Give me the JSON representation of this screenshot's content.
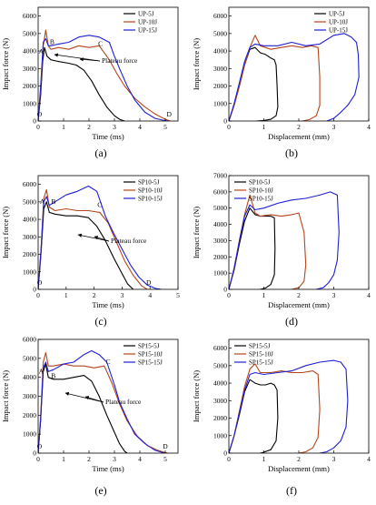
{
  "chart_data": [
    {
      "id": "a",
      "type": "line",
      "panel_label": "(a)",
      "xlabel": "Time (ms)",
      "ylabel": "Impact force (N)",
      "xlim": [
        0,
        5.5
      ],
      "ylim": [
        0,
        6500
      ],
      "xticks": [
        0,
        1,
        2,
        3,
        4,
        5
      ],
      "yticks": [
        0,
        1000,
        2000,
        3000,
        4000,
        5000,
        6000
      ],
      "legend": "top-right",
      "annotation": "Plateau force",
      "point_labels": [
        {
          "text": "O",
          "x": 0.05,
          "y": 250
        },
        {
          "text": "A",
          "x": 0.12,
          "y": 3850
        },
        {
          "text": "B",
          "x": 0.55,
          "y": 4400
        },
        {
          "text": "C",
          "x": 2.45,
          "y": 4300
        },
        {
          "text": "D",
          "x": 5.15,
          "y": 250
        }
      ],
      "series": [
        {
          "name": "UP-5J",
          "color": "#000000",
          "x": [
            0,
            0.1,
            0.18,
            0.25,
            0.35,
            0.5,
            0.8,
            1.2,
            1.5,
            1.8,
            2.1,
            2.4,
            2.7,
            3.0,
            3.2,
            3.4
          ],
          "y": [
            0,
            1500,
            3400,
            4200,
            3700,
            3500,
            3400,
            3300,
            3200,
            2900,
            2300,
            1500,
            800,
            300,
            100,
            0
          ]
        },
        {
          "name": "UP-10J",
          "color": "#b5451b",
          "x": [
            0,
            0.1,
            0.2,
            0.3,
            0.4,
            0.5,
            0.8,
            1.2,
            1.6,
            2.0,
            2.4,
            2.8,
            3.1,
            3.4,
            3.8,
            4.2,
            4.6,
            5.0,
            5.2
          ],
          "y": [
            0,
            1800,
            4300,
            5200,
            4300,
            4100,
            4200,
            4100,
            4300,
            4200,
            4300,
            3500,
            2700,
            2000,
            1300,
            800,
            400,
            100,
            0
          ]
        },
        {
          "name": "UP-15J",
          "color": "#1f1fd6",
          "x": [
            0,
            0.1,
            0.2,
            0.3,
            0.4,
            0.5,
            0.8,
            1.2,
            1.6,
            2.0,
            2.4,
            2.8,
            3.0,
            3.2,
            3.5,
            3.8,
            4.2,
            4.6,
            4.9,
            5.1
          ],
          "y": [
            0,
            2000,
            4500,
            4700,
            4300,
            4300,
            4400,
            4500,
            4800,
            4900,
            4800,
            4500,
            3700,
            3000,
            2000,
            1200,
            500,
            150,
            50,
            0
          ]
        }
      ]
    },
    {
      "id": "b",
      "type": "line",
      "panel_label": "(b)",
      "xlabel": "Displacement (mm)",
      "ylabel": "Impact force (N)",
      "xlim": [
        0,
        4
      ],
      "ylim": [
        0,
        6500
      ],
      "xticks": [
        0,
        1,
        2,
        3,
        4
      ],
      "yticks": [
        0,
        1000,
        2000,
        3000,
        4000,
        5000,
        6000
      ],
      "legend": "top-right",
      "series": [
        {
          "name": "UP-5J",
          "color": "#000000",
          "x": [
            0,
            0.15,
            0.3,
            0.45,
            0.6,
            0.75,
            0.9,
            1.05,
            1.2,
            1.3,
            1.35,
            1.38,
            1.4,
            1.35,
            1.2,
            1.0,
            0.8
          ],
          "y": [
            0,
            900,
            2000,
            3200,
            4100,
            4200,
            3900,
            3800,
            3600,
            3500,
            3200,
            2000,
            800,
            300,
            100,
            30,
            0
          ]
        },
        {
          "name": "UP-10J",
          "color": "#b5451b",
          "x": [
            0,
            0.15,
            0.3,
            0.45,
            0.6,
            0.75,
            0.9,
            1.2,
            1.5,
            1.8,
            2.1,
            2.35,
            2.55,
            2.6,
            2.6,
            2.5,
            2.3,
            2.1
          ],
          "y": [
            0,
            900,
            2000,
            3200,
            4200,
            4900,
            4300,
            4100,
            4200,
            4300,
            4200,
            4300,
            4200,
            2500,
            900,
            300,
            80,
            0
          ]
        },
        {
          "name": "UP-15J",
          "color": "#1f1fd6",
          "x": [
            0,
            0.15,
            0.3,
            0.45,
            0.6,
            0.75,
            1.0,
            1.4,
            1.8,
            2.2,
            2.6,
            3.0,
            3.3,
            3.5,
            3.65,
            3.7,
            3.72,
            3.6,
            3.4,
            3.2,
            3.0,
            2.8
          ],
          "y": [
            0,
            1000,
            2200,
            3400,
            4200,
            4400,
            4300,
            4300,
            4500,
            4300,
            4400,
            4900,
            5000,
            4800,
            4500,
            3800,
            2500,
            1500,
            900,
            500,
            150,
            0
          ]
        }
      ]
    },
    {
      "id": "c",
      "type": "line",
      "panel_label": "(c)",
      "xlabel": "Time (ms)",
      "ylabel": "Impact force (N)",
      "xlim": [
        0,
        5
      ],
      "ylim": [
        0,
        6500
      ],
      "xticks": [
        0,
        1,
        2,
        3,
        4,
        5
      ],
      "yticks": [
        0,
        1000,
        2000,
        3000,
        4000,
        5000,
        6000
      ],
      "legend": "top-right",
      "annotation": "Plateau force",
      "point_labels": [
        {
          "text": "O",
          "x": 0.05,
          "y": 250
        },
        {
          "text": "A",
          "x": 0.15,
          "y": 4900
        },
        {
          "text": "B",
          "x": 0.55,
          "y": 4900
        },
        {
          "text": "C",
          "x": 2.2,
          "y": 4700
        },
        {
          "text": "D",
          "x": 3.95,
          "y": 250
        }
      ],
      "series": [
        {
          "name": "SP10-5J",
          "color": "#000000",
          "x": [
            0,
            0.1,
            0.2,
            0.3,
            0.4,
            0.6,
            1.0,
            1.4,
            1.8,
            2.1,
            2.4,
            2.7,
            3.0,
            3.2,
            3.4
          ],
          "y": [
            0,
            2000,
            4600,
            5000,
            4400,
            4300,
            4200,
            4200,
            4100,
            3600,
            2800,
            1800,
            900,
            300,
            0
          ]
        },
        {
          "name": "SP10-10J",
          "color": "#b5451b",
          "x": [
            0,
            0.1,
            0.2,
            0.3,
            0.4,
            0.6,
            1.0,
            1.4,
            1.8,
            2.2,
            2.5,
            2.8,
            3.1,
            3.4,
            3.7,
            3.9
          ],
          "y": [
            0,
            2200,
            5200,
            5700,
            4700,
            4500,
            4600,
            4500,
            4500,
            4400,
            3800,
            2700,
            1600,
            800,
            200,
            0
          ]
        },
        {
          "name": "SP10-15J",
          "color": "#1f1fd6",
          "x": [
            0,
            0.1,
            0.2,
            0.3,
            0.4,
            0.6,
            1.0,
            1.4,
            1.8,
            2.1,
            2.4,
            2.7,
            3.0,
            3.3,
            3.6,
            3.9,
            4.2,
            4.4
          ],
          "y": [
            0,
            2200,
            5000,
            5300,
            4800,
            5000,
            5400,
            5600,
            5900,
            5600,
            4200,
            3200,
            2300,
            1400,
            700,
            250,
            50,
            0
          ]
        }
      ]
    },
    {
      "id": "d",
      "type": "line",
      "panel_label": "(d)",
      "xlabel": "Displacement (mm)",
      "ylabel": "Impact force (N)",
      "xlim": [
        0,
        4
      ],
      "ylim": [
        0,
        7000
      ],
      "xticks": [
        0,
        1,
        2,
        3,
        4
      ],
      "yticks": [
        0,
        1000,
        2000,
        3000,
        4000,
        5000,
        6000,
        7000
      ],
      "legend": "top-left",
      "series": [
        {
          "name": "SP10-5J",
          "color": "#000000",
          "x": [
            0,
            0.15,
            0.3,
            0.45,
            0.6,
            0.75,
            0.9,
            1.05,
            1.2,
            1.3,
            1.32,
            1.3,
            1.2,
            1.05,
            0.9
          ],
          "y": [
            0,
            1200,
            2800,
            4200,
            5000,
            4600,
            4500,
            4500,
            4500,
            4400,
            2500,
            900,
            300,
            80,
            0
          ]
        },
        {
          "name": "SP10-10J",
          "color": "#b5451b",
          "x": [
            0,
            0.15,
            0.3,
            0.45,
            0.6,
            0.75,
            0.9,
            1.2,
            1.5,
            1.8,
            2.0,
            2.15,
            2.2,
            2.15,
            2.0,
            1.8
          ],
          "y": [
            0,
            1300,
            3000,
            4600,
            5800,
            4700,
            4500,
            4600,
            4500,
            4600,
            4700,
            3500,
            1500,
            500,
            100,
            0
          ]
        },
        {
          "name": "SP10-15J",
          "color": "#1f1fd6",
          "x": [
            0,
            0.15,
            0.3,
            0.45,
            0.6,
            0.75,
            1.0,
            1.4,
            1.8,
            2.2,
            2.6,
            2.9,
            3.1,
            3.15,
            3.1,
            3.0,
            2.85,
            2.7,
            2.5
          ],
          "y": [
            0,
            1300,
            3000,
            4500,
            5200,
            4900,
            5000,
            5300,
            5500,
            5600,
            5800,
            6000,
            5800,
            3500,
            1800,
            900,
            400,
            100,
            0
          ]
        }
      ]
    },
    {
      "id": "e",
      "type": "line",
      "panel_label": "(e)",
      "xlabel": "Time (ms)",
      "ylabel": "Impact force (N)",
      "xlim": [
        0,
        5.5
      ],
      "ylim": [
        0,
        6000
      ],
      "xticks": [
        0,
        1,
        2,
        3,
        4,
        5
      ],
      "yticks": [
        0,
        1000,
        2000,
        3000,
        4000,
        5000,
        6000
      ],
      "legend": "top-right",
      "annotation": "Plateau force",
      "point_labels": [
        {
          "text": "O",
          "x": 0.05,
          "y": 250
        },
        {
          "text": "A",
          "x": 0.12,
          "y": 4200
        },
        {
          "text": "B",
          "x": 0.6,
          "y": 3950
        },
        {
          "text": "C",
          "x": 2.75,
          "y": 4700
        },
        {
          "text": "D",
          "x": 5.0,
          "y": 250
        }
      ],
      "series": [
        {
          "name": "SP15-5J",
          "color": "#000000",
          "x": [
            0,
            0.1,
            0.2,
            0.3,
            0.4,
            0.6,
            1.0,
            1.4,
            1.8,
            2.1,
            2.4,
            2.7,
            3.0,
            3.2,
            3.4,
            3.5
          ],
          "y": [
            0,
            1800,
            4300,
            4700,
            4000,
            3900,
            3900,
            4000,
            4100,
            3800,
            3000,
            2000,
            1100,
            500,
            100,
            0
          ]
        },
        {
          "name": "SP15-10J",
          "color": "#b5451b",
          "x": [
            0,
            0.1,
            0.2,
            0.3,
            0.4,
            0.6,
            1.0,
            1.4,
            1.8,
            2.2,
            2.6,
            2.9,
            3.2,
            3.5,
            3.9,
            4.3,
            4.7,
            5.0,
            5.1
          ],
          "y": [
            0,
            2000,
            4800,
            5300,
            4600,
            4600,
            4700,
            4600,
            4600,
            4500,
            4600,
            3700,
            2600,
            1700,
            900,
            400,
            150,
            30,
            0
          ]
        },
        {
          "name": "SP15-15J",
          "color": "#1f1fd6",
          "x": [
            0,
            0.1,
            0.2,
            0.3,
            0.4,
            0.6,
            1.0,
            1.4,
            1.8,
            2.1,
            2.4,
            2.7,
            3.0,
            3.2,
            3.5,
            3.8,
            4.2,
            4.6,
            4.9,
            5.0
          ],
          "y": [
            0,
            1800,
            4500,
            4800,
            4300,
            4400,
            4700,
            4800,
            5200,
            5400,
            5200,
            4800,
            3600,
            2700,
            1800,
            1000,
            500,
            150,
            30,
            0
          ]
        }
      ]
    },
    {
      "id": "f",
      "type": "line",
      "panel_label": "(f)",
      "xlabel": "Displacement (mm)",
      "ylabel": "Impact force (N)",
      "xlim": [
        0,
        4
      ],
      "ylim": [
        0,
        6500
      ],
      "xticks": [
        0,
        1,
        2,
        3,
        4
      ],
      "yticks": [
        0,
        1000,
        2000,
        3000,
        4000,
        5000,
        6000
      ],
      "legend": "top-left",
      "series": [
        {
          "name": "SP15-5J",
          "color": "#000000",
          "x": [
            0,
            0.15,
            0.3,
            0.45,
            0.6,
            0.75,
            0.9,
            1.05,
            1.2,
            1.3,
            1.38,
            1.4,
            1.35,
            1.2,
            1.0,
            0.9
          ],
          "y": [
            0,
            1000,
            2200,
            3500,
            4200,
            4000,
            3900,
            3900,
            4000,
            3900,
            3600,
            2000,
            700,
            200,
            50,
            0
          ]
        },
        {
          "name": "SP15-10J",
          "color": "#b5451b",
          "x": [
            0,
            0.15,
            0.3,
            0.45,
            0.6,
            0.75,
            0.9,
            1.2,
            1.5,
            1.8,
            2.1,
            2.4,
            2.55,
            2.6,
            2.55,
            2.4,
            2.2,
            2.0
          ],
          "y": [
            0,
            1000,
            2400,
            3800,
            4800,
            5100,
            4600,
            4600,
            4700,
            4600,
            4600,
            4700,
            4500,
            2500,
            900,
            300,
            80,
            0
          ]
        },
        {
          "name": "SP15-15J",
          "color": "#1f1fd6",
          "x": [
            0,
            0.15,
            0.3,
            0.45,
            0.6,
            0.75,
            1.0,
            1.4,
            1.8,
            2.2,
            2.6,
            3.0,
            3.2,
            3.35,
            3.4,
            3.35,
            3.2,
            3.0,
            2.8,
            2.6
          ],
          "y": [
            0,
            1000,
            2300,
            3600,
            4500,
            4600,
            4500,
            4600,
            4700,
            5000,
            5200,
            5300,
            5200,
            4800,
            3000,
            1500,
            700,
            300,
            80,
            0
          ]
        }
      ]
    }
  ]
}
